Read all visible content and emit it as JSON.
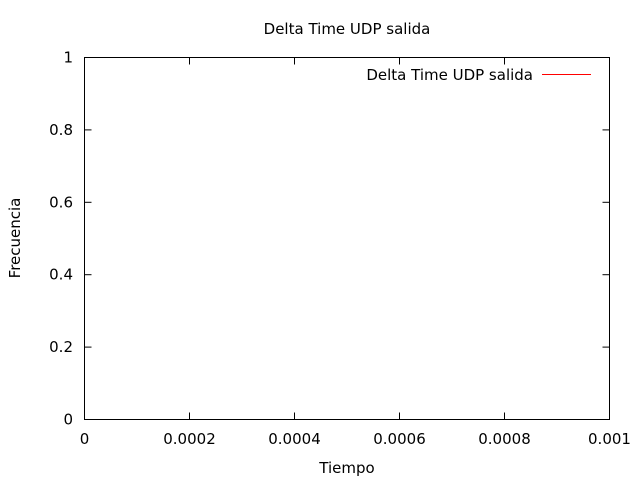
{
  "chart_data": {
    "type": "line",
    "title": "Delta Time UDP salida",
    "xlabel": "Tiempo",
    "ylabel": "Frecuencia",
    "xlim": [
      0,
      0.001
    ],
    "ylim": [
      0,
      1
    ],
    "x_ticks": [
      "0",
      "0.0002",
      "0.0004",
      "0.0006",
      "0.0008",
      "0.001"
    ],
    "y_ticks": [
      "0",
      "0.2",
      "0.4",
      "0.6",
      "0.8",
      "1"
    ],
    "grid": false,
    "legend_position": "top-right",
    "series": [
      {
        "name": "Delta Time UDP salida",
        "color": "#ff0000",
        "x": [],
        "y": []
      }
    ]
  }
}
